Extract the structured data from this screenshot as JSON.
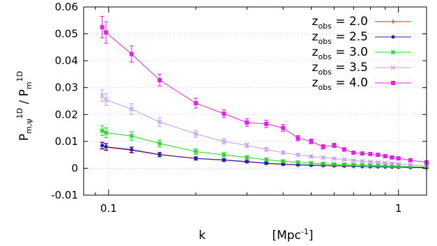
{
  "chart_data": {
    "type": "line",
    "title": "",
    "xlabel": "k",
    "xunit": "[Mpc-1]",
    "ylabel": "Pm,ψ1D / Pm1D",
    "x_scale": "log",
    "xlim": [
      0.082,
      1.25
    ],
    "ylim": [
      -0.01,
      0.06
    ],
    "x_ticks": [
      {
        "value": 0.1,
        "label": "0.1"
      },
      {
        "value": 1,
        "label": "1"
      }
    ],
    "y_ticks": [
      {
        "value": -0.01,
        "label": "-0.01"
      },
      {
        "value": 0,
        "label": "0"
      },
      {
        "value": 0.01,
        "label": "0.01"
      },
      {
        "value": 0.02,
        "label": "0.02"
      },
      {
        "value": 0.03,
        "label": "0.03"
      },
      {
        "value": 0.04,
        "label": "0.04"
      },
      {
        "value": 0.05,
        "label": "0.05"
      },
      {
        "value": 0.06,
        "label": "0.06"
      }
    ],
    "grid": true,
    "legend_position": "top-right",
    "x": [
      0.095,
      0.098,
      0.12,
      0.15,
      0.2,
      0.25,
      0.3,
      0.35,
      0.4,
      0.45,
      0.5,
      0.55,
      0.6,
      0.65,
      0.7,
      0.75,
      0.8,
      0.85,
      0.9,
      0.95,
      1.0,
      1.1,
      1.25
    ],
    "series": [
      {
        "name": "zobs = 2.0",
        "label_main": "z",
        "label_sub": "obs",
        "label_tail": " = 2.0",
        "color": "#e8251f",
        "marker": "plus",
        "values": [
          0.0083,
          0.0078,
          0.0067,
          0.005,
          0.0036,
          0.003,
          0.0024,
          0.0018,
          0.0014,
          0.0012,
          0.0011,
          0.001,
          0.0009,
          0.0008,
          0.0007,
          0.0006,
          0.0006,
          0.0005,
          0.0005,
          0.0004,
          0.0004,
          0.0003,
          0.0002
        ],
        "errors": [
          0.0012,
          0.0012,
          0.001,
          0.0008,
          0.0006,
          0.0005,
          0.0004,
          0.0004,
          0.0003,
          0.0003,
          0.0003,
          0.0003,
          0.0003,
          0.0003,
          0.0002,
          0.0002,
          0.0002,
          0.0002,
          0.0002,
          0.0002,
          0.0002,
          0.0002,
          0.0002
        ]
      },
      {
        "name": "zobs = 2.5",
        "label_main": "z",
        "label_sub": "obs",
        "label_tail": " = 2.5",
        "color": "#1a1fb5",
        "marker": "circle",
        "values": [
          0.0085,
          0.008,
          0.0069,
          0.0051,
          0.0037,
          0.0031,
          0.0025,
          0.0019,
          0.0015,
          0.0013,
          0.0012,
          0.0011,
          0.001,
          0.0009,
          0.0008,
          0.0007,
          0.0006,
          0.0006,
          0.0005,
          0.0005,
          0.0004,
          0.0003,
          0.0002
        ],
        "errors": [
          0.0012,
          0.0012,
          0.001,
          0.0008,
          0.0006,
          0.0005,
          0.0004,
          0.0004,
          0.0003,
          0.0003,
          0.0003,
          0.0003,
          0.0003,
          0.0003,
          0.0002,
          0.0002,
          0.0002,
          0.0002,
          0.0002,
          0.0002,
          0.0002,
          0.0002,
          0.0002
        ]
      },
      {
        "name": "zobs = 3.0",
        "label_main": "z",
        "label_sub": "obs",
        "label_tail": " = 3.0",
        "color": "#22d41f",
        "marker": "star",
        "values": [
          0.014,
          0.0132,
          0.012,
          0.0092,
          0.0062,
          0.005,
          0.004,
          0.0032,
          0.0026,
          0.0022,
          0.0019,
          0.0017,
          0.0015,
          0.0014,
          0.0013,
          0.0012,
          0.0011,
          0.001,
          0.0009,
          0.0008,
          0.0007,
          0.0006,
          0.0005
        ],
        "errors": [
          0.0018,
          0.0018,
          0.0016,
          0.0013,
          0.001,
          0.0008,
          0.0006,
          0.0005,
          0.0004,
          0.0004,
          0.0004,
          0.0004,
          0.0003,
          0.0003,
          0.0003,
          0.0003,
          0.0003,
          0.0003,
          0.0003,
          0.0003,
          0.0003,
          0.0003,
          0.0003
        ]
      },
      {
        "name": "zobs = 3.5",
        "label_main": "z",
        "label_sub": "obs",
        "label_tail": " = 3.5",
        "color": "#c59df2",
        "marker": "cross",
        "values": [
          0.027,
          0.0255,
          0.022,
          0.0172,
          0.0128,
          0.01,
          0.0085,
          0.007,
          0.0058,
          0.005,
          0.0044,
          0.004,
          0.0036,
          0.0032,
          0.0029,
          0.0026,
          0.0024,
          0.0022,
          0.002,
          0.0018,
          0.0016,
          0.0013,
          0.001
        ],
        "errors": [
          0.0022,
          0.0022,
          0.002,
          0.0016,
          0.0013,
          0.001,
          0.0008,
          0.0007,
          0.0006,
          0.0005,
          0.0005,
          0.0005,
          0.0004,
          0.0004,
          0.0004,
          0.0004,
          0.0003,
          0.0003,
          0.0003,
          0.0003,
          0.0003,
          0.0003,
          0.0003
        ]
      },
      {
        "name": "zobs = 4.0",
        "label_main": "z",
        "label_sub": "obs",
        "label_tail": " = 4.0",
        "color": "#e81fe8",
        "marker": "square",
        "values": [
          0.0525,
          0.0505,
          0.0425,
          0.0328,
          0.0242,
          0.0203,
          0.017,
          0.0165,
          0.015,
          0.0112,
          0.01,
          0.008,
          0.0085,
          0.007,
          0.0058,
          0.0055,
          0.0053,
          0.005,
          0.0045,
          0.004,
          0.0037,
          0.003,
          0.0022
        ],
        "errors": [
          0.004,
          0.004,
          0.003,
          0.0022,
          0.0018,
          0.0015,
          0.0014,
          0.0014,
          0.0013,
          0.001,
          0.0009,
          0.0008,
          0.0008,
          0.0007,
          0.0006,
          0.0006,
          0.0005,
          0.0005,
          0.0005,
          0.0005,
          0.0004,
          0.0004,
          0.0004
        ]
      }
    ]
  }
}
